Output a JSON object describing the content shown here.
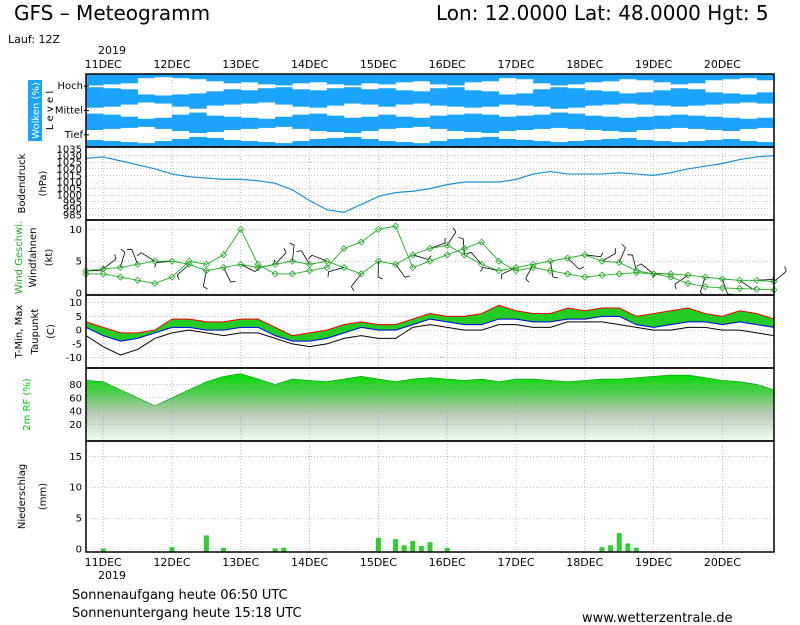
{
  "header": {
    "title": "GFS – Meteogramm",
    "location": "Lon: 12.0000 Lat: 48.0000 Hgt: 5",
    "run": "Lauf: 12Z"
  },
  "time_axis": {
    "year": "2019",
    "labels": [
      "11DEC",
      "12DEC",
      "13DEC",
      "14DEC",
      "15DEC",
      "16DEC",
      "17DEC",
      "18DEC",
      "19DEC",
      "20DEC"
    ]
  },
  "colors": {
    "cloud": "#1aa3ff",
    "wind_line": "#22aa22",
    "rh": "#00cc00",
    "precip": "#33cc33",
    "tmin": "#0000ff",
    "tmax": "#ff0000"
  },
  "footer": {
    "sunrise": "Sonnenaufgang heute 06:50 UTC",
    "sunset": "Sonnenuntergang heute 15:18 UTC",
    "site": "www.wetterzentrale.de"
  },
  "chart_data": [
    {
      "type": "heatmap",
      "panel": "clouds",
      "ylabel": "Wolken (%)",
      "ylabel2": "L e v e l",
      "levels": [
        "Hoch",
        "Mittel",
        "Tief"
      ],
      "x": [
        0,
        6,
        12,
        18,
        24,
        30,
        36,
        42,
        48,
        54,
        60,
        66,
        72,
        78,
        84,
        90,
        96,
        102,
        108,
        114,
        120,
        126,
        132,
        138,
        144,
        150,
        156,
        162,
        168,
        174,
        180,
        186,
        192,
        198,
        204,
        210,
        216,
        222,
        228,
        234
      ],
      "cover_pct": {
        "Hoch": [
          90,
          80,
          70,
          20,
          10,
          20,
          30,
          50,
          70,
          60,
          80,
          90,
          70,
          60,
          80,
          90,
          70,
          80,
          60,
          50,
          80,
          90,
          60,
          50,
          20,
          30,
          70,
          90,
          80,
          60,
          50,
          30,
          40,
          60,
          80,
          70,
          40,
          30,
          20,
          40
        ],
        "Mittel": [
          70,
          60,
          40,
          20,
          30,
          60,
          80,
          50,
          40,
          30,
          20,
          40,
          60,
          70,
          50,
          30,
          40,
          60,
          40,
          30,
          50,
          60,
          70,
          60,
          40,
          50,
          60,
          80,
          70,
          50,
          40,
          30,
          40,
          50,
          60,
          50,
          40,
          30,
          20,
          30
        ],
        "Tief": [
          50,
          40,
          30,
          20,
          40,
          60,
          80,
          70,
          50,
          40,
          30,
          20,
          40,
          60,
          70,
          80,
          60,
          40,
          30,
          20,
          40,
          60,
          70,
          80,
          60,
          50,
          40,
          30,
          40,
          50,
          60,
          70,
          50,
          40,
          30,
          40,
          50,
          60,
          40,
          30
        ]
      }
    },
    {
      "type": "line",
      "panel": "pressure",
      "ylabel": "Bodendruck",
      "unit": "(hPa)",
      "yticks": [
        985,
        990,
        995,
        1000,
        1005,
        1010,
        1015,
        1020,
        1025,
        1030,
        1035
      ],
      "ylim": [
        985,
        1035
      ],
      "x": [
        0,
        6,
        12,
        18,
        24,
        30,
        36,
        42,
        48,
        54,
        60,
        66,
        72,
        78,
        84,
        90,
        96,
        102,
        108,
        114,
        120,
        126,
        132,
        138,
        144,
        150,
        156,
        162,
        168,
        174,
        180,
        186,
        192,
        198,
        204,
        210,
        216,
        222,
        228,
        234,
        240
      ],
      "values": [
        1028,
        1029,
        1026,
        1023,
        1020,
        1016,
        1014,
        1013,
        1012,
        1012,
        1011,
        1009,
        1004,
        996,
        989,
        987,
        993,
        999,
        1002,
        1003,
        1005,
        1008,
        1010,
        1010,
        1010,
        1012,
        1016,
        1018,
        1016,
        1016,
        1016,
        1017,
        1016,
        1015,
        1017,
        1020,
        1022,
        1024,
        1027,
        1029,
        1030
      ]
    },
    {
      "type": "line",
      "panel": "wind",
      "ylabel": "Wind Geschwi.",
      "ylabel2": "Windfahnen",
      "unit": "(kt)",
      "yticks": [
        0,
        5,
        10
      ],
      "ylim": [
        0,
        11
      ],
      "x": [
        0,
        6,
        12,
        18,
        24,
        30,
        36,
        42,
        48,
        54,
        60,
        66,
        72,
        78,
        84,
        90,
        96,
        102,
        108,
        114,
        120,
        126,
        132,
        138,
        144,
        150,
        156,
        162,
        168,
        174,
        180,
        186,
        192,
        198,
        204,
        210,
        216,
        222,
        228,
        234,
        240
      ],
      "series": [
        {
          "values": [
            3,
            3,
            2.5,
            2,
            1.5,
            2.5,
            5,
            4.5,
            6,
            10,
            4.5,
            3,
            3,
            3.5,
            4,
            7,
            8,
            10,
            10.5,
            4,
            5,
            6,
            7,
            8,
            5,
            3.5,
            4,
            3.5,
            3,
            2.5,
            2.8,
            3,
            3.2,
            3,
            2.5,
            1.5,
            1,
            0.8,
            0.7,
            0.6,
            0.5
          ]
        },
        {
          "values": [
            3.5,
            3.8,
            4,
            4.5,
            5,
            5,
            4.5,
            3.5,
            4,
            4.5,
            4,
            4.5,
            5,
            4.5,
            5,
            4,
            3,
            5,
            4.5,
            6,
            7,
            7.5,
            6,
            4.5,
            3.5,
            4,
            4.5,
            5,
            5.5,
            6,
            5,
            4.8,
            3.5,
            3,
            3,
            2.8,
            2.5,
            2.2,
            2,
            2,
            1.8
          ]
        }
      ]
    },
    {
      "type": "area",
      "panel": "temperature",
      "ylabel": "T-Min, Max",
      "ylabel2": "Taupunkt",
      "unit": "(C)",
      "yticks": [
        -10,
        -5,
        0,
        5,
        10
      ],
      "ylim": [
        -13,
        12
      ],
      "x": [
        0,
        6,
        12,
        18,
        24,
        30,
        36,
        42,
        48,
        54,
        60,
        66,
        72,
        78,
        84,
        90,
        96,
        102,
        108,
        114,
        120,
        126,
        132,
        138,
        144,
        150,
        156,
        162,
        168,
        174,
        180,
        186,
        192,
        198,
        204,
        210,
        216,
        222,
        228,
        234,
        240
      ],
      "series": [
        {
          "name": "T-Max",
          "values": [
            3,
            1,
            -1,
            -1,
            0,
            4,
            4,
            3,
            3,
            4,
            4,
            1,
            -2,
            -1,
            0,
            2,
            3,
            2,
            2,
            4,
            6,
            5,
            5,
            6,
            9,
            7,
            6,
            6,
            8,
            7,
            8,
            8,
            5,
            6,
            7,
            8,
            6,
            5,
            7,
            6,
            4
          ]
        },
        {
          "name": "T-Min",
          "values": [
            1,
            -2,
            -4,
            -3,
            -1,
            1,
            1,
            0,
            0,
            1,
            1,
            -2,
            -4,
            -4,
            -3,
            -1,
            1,
            0,
            0,
            2,
            4,
            3,
            2,
            2,
            4,
            4,
            3,
            3,
            4,
            4,
            5,
            5,
            2,
            1,
            2,
            3,
            3,
            2,
            3,
            2,
            1
          ]
        },
        {
          "name": "Taupunkt",
          "values": [
            -2,
            -6,
            -9,
            -7,
            -3,
            -1,
            0,
            -1,
            -2,
            -1,
            -1,
            -3,
            -5,
            -6,
            -5,
            -3,
            -2,
            -3,
            -3,
            1,
            2,
            1,
            0,
            0,
            2,
            2,
            1,
            1,
            3,
            3,
            3,
            2,
            1,
            0,
            0,
            1,
            1,
            0,
            0,
            -1,
            -2
          ]
        }
      ]
    },
    {
      "type": "area",
      "panel": "humidity",
      "ylabel": "2m RF (%)",
      "yticks": [
        20,
        40,
        60,
        80
      ],
      "ylim": [
        0,
        100
      ],
      "x": [
        0,
        6,
        12,
        18,
        24,
        30,
        36,
        42,
        48,
        54,
        60,
        66,
        72,
        78,
        84,
        90,
        96,
        102,
        108,
        114,
        120,
        126,
        132,
        138,
        144,
        150,
        156,
        162,
        168,
        174,
        180,
        186,
        192,
        198,
        204,
        210,
        216,
        222,
        228,
        234,
        240
      ],
      "values": [
        86,
        84,
        72,
        60,
        48,
        60,
        72,
        84,
        92,
        96,
        88,
        80,
        88,
        86,
        84,
        88,
        92,
        88,
        84,
        88,
        90,
        88,
        86,
        88,
        84,
        88,
        88,
        86,
        84,
        86,
        88,
        88,
        90,
        92,
        94,
        94,
        90,
        86,
        84,
        80,
        72
      ]
    },
    {
      "type": "bar",
      "panel": "precipitation",
      "ylabel": "Niederschlag",
      "unit": "(mm)",
      "yticks": [
        0,
        5,
        10,
        15
      ],
      "ylim": [
        0,
        17
      ],
      "x": [
        6,
        30,
        42,
        48,
        66,
        69,
        102,
        108,
        111,
        114,
        117,
        120,
        126,
        180,
        183,
        186,
        189,
        192
      ],
      "values": [
        0.1,
        0.3,
        2.2,
        0.2,
        0.1,
        0.2,
        1.8,
        1.6,
        0.6,
        1.3,
        0.5,
        1.1,
        0.2,
        0.3,
        0.6,
        2.6,
        0.9,
        0.2
      ]
    }
  ]
}
